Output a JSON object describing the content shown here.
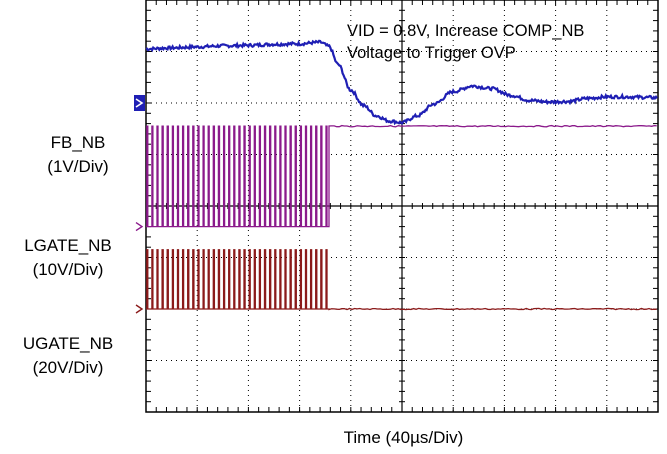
{
  "chart_data": {
    "type": "line",
    "title": "",
    "annotation": [
      "VID = 0.8V, Increase COMP_NB",
      "Voltage to Trigger OVP"
    ],
    "xlabel": "Time (40µs/Div)",
    "grid": true,
    "divisions": {
      "x": 10,
      "y": 8
    },
    "xlim": [
      0,
      400
    ],
    "x_unit": "µs",
    "series": [
      {
        "name": "FB_NB",
        "scale": "(1V/Div)",
        "color": "#1f1fb4",
        "marker_color": "#1f1fb4",
        "marker_level_div": 6.0,
        "points": [
          [
            0,
            7.05
          ],
          [
            20,
            7.07
          ],
          [
            40,
            7.09
          ],
          [
            60,
            7.11
          ],
          [
            80,
            7.12
          ],
          [
            100,
            7.14
          ],
          [
            120,
            7.15
          ],
          [
            136,
            7.18
          ],
          [
            143,
            7.1
          ],
          [
            150,
            6.75
          ],
          [
            160,
            6.25
          ],
          [
            170,
            5.95
          ],
          [
            180,
            5.75
          ],
          [
            190,
            5.65
          ],
          [
            200,
            5.62
          ],
          [
            212,
            5.75
          ],
          [
            225,
            5.98
          ],
          [
            240,
            6.22
          ],
          [
            255,
            6.33
          ],
          [
            270,
            6.28
          ],
          [
            285,
            6.15
          ],
          [
            300,
            6.05
          ],
          [
            315,
            6.02
          ],
          [
            330,
            6.03
          ],
          [
            345,
            6.09
          ],
          [
            360,
            6.12
          ],
          [
            375,
            6.12
          ],
          [
            390,
            6.11
          ],
          [
            400,
            6.1
          ]
        ]
      },
      {
        "name": "LGATE_NB",
        "scale": "(10V/Div)",
        "color": "#8b1a8b",
        "marker_color": "#8b1a8b",
        "marker_level_div": 3.6,
        "high_div": 5.55,
        "low_div": 3.6,
        "switching_until": 143,
        "switching_period": 4.0,
        "steady_level_div": 5.55
      },
      {
        "name": "UGATE_NB",
        "scale": "(20V/Div)",
        "color": "#8b1a1a",
        "marker_color": "#8b1a1a",
        "marker_level_div": 2.0,
        "high_div": 3.15,
        "low_div": 2.0,
        "switching_until": 143,
        "switching_period": 4.0,
        "steady_level_div": 2.0
      }
    ]
  }
}
